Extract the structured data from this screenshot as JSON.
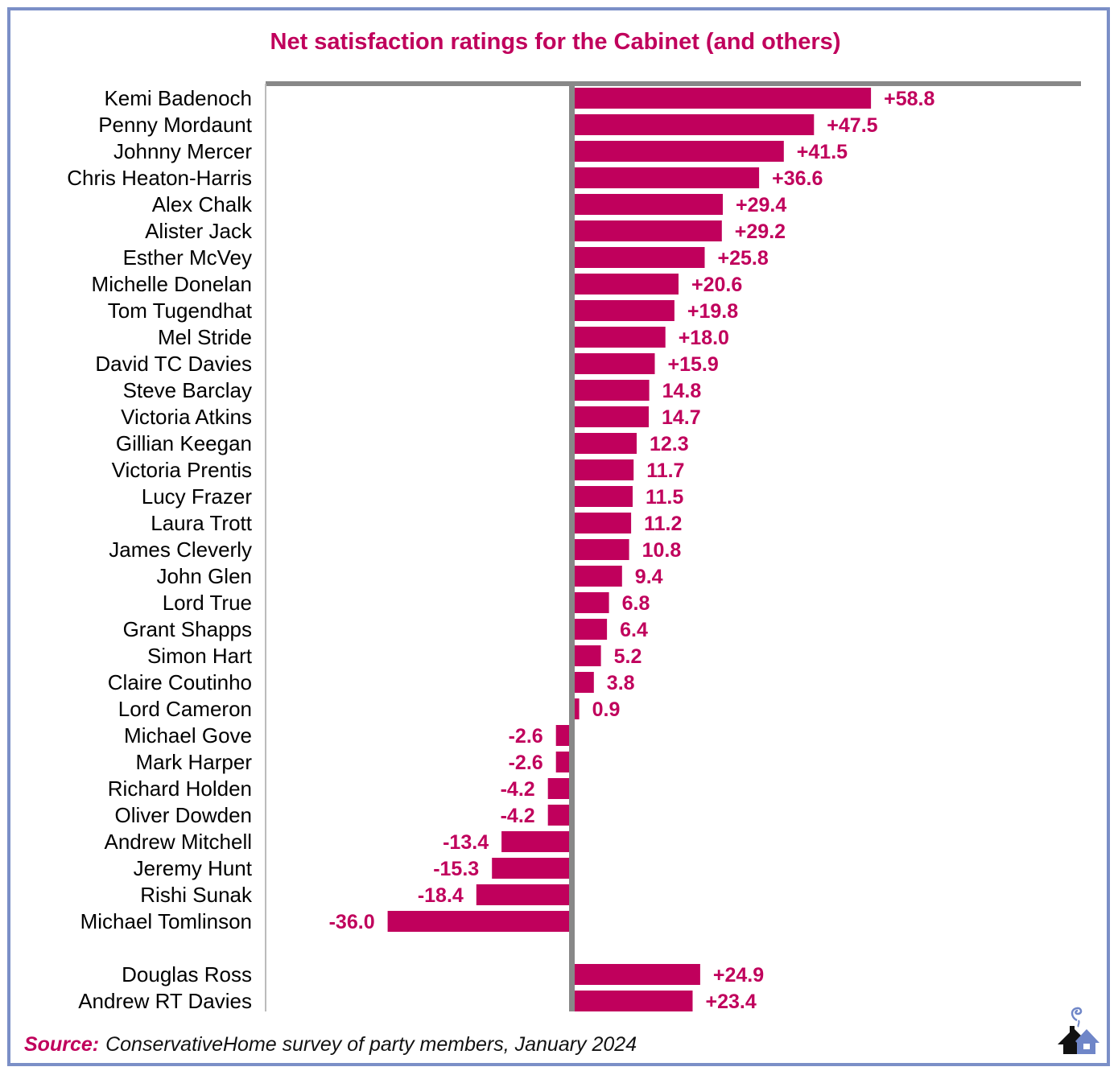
{
  "chart_data": {
    "type": "bar",
    "orientation": "horizontal",
    "title": "Net satisfaction ratings for the Cabinet (and others)",
    "xlabel": "",
    "ylabel": "",
    "xlim": [
      -60,
      100
    ],
    "grid": false,
    "legend": "none",
    "bar_color": "#c0005c",
    "label_color": "#c0005c",
    "axis_color": "#888888",
    "groups": [
      {
        "name": "Cabinet",
        "categories": [
          "Kemi Badenoch",
          "Penny Mordaunt",
          "Johnny Mercer",
          "Chris Heaton-Harris",
          "Alex Chalk",
          "Alister Jack",
          "Esther McVey",
          "Michelle Donelan",
          "Tom Tugendhat",
          "Mel Stride",
          "David TC Davies",
          "Steve Barclay",
          "Victoria Atkins",
          "Gillian Keegan",
          "Victoria Prentis",
          "Lucy Frazer",
          "Laura Trott",
          "James Cleverly",
          "John Glen",
          "Lord True",
          "Grant Shapps",
          "Simon Hart",
          "Claire Coutinho",
          "Lord Cameron",
          "Michael Gove",
          "Mark Harper",
          "Richard Holden",
          "Oliver Dowden",
          "Andrew Mitchell",
          "Jeremy Hunt",
          "Rishi Sunak",
          "Michael Tomlinson"
        ],
        "values": [
          58.8,
          47.5,
          41.5,
          36.6,
          29.4,
          29.2,
          25.8,
          20.6,
          19.8,
          18.0,
          15.9,
          14.8,
          14.7,
          12.3,
          11.7,
          11.5,
          11.2,
          10.8,
          9.4,
          6.8,
          6.4,
          5.2,
          3.8,
          0.9,
          -2.6,
          -2.6,
          -4.2,
          -4.2,
          -13.4,
          -15.3,
          -18.4,
          -36.0
        ],
        "labels": [
          "+58.8",
          "+47.5",
          "+41.5",
          "+36.6",
          "+29.4",
          "+29.2",
          "+25.8",
          "+20.6",
          "+19.8",
          "+18.0",
          "+15.9",
          "14.8",
          "14.7",
          "12.3",
          "11.7",
          "11.5",
          "11.2",
          "10.8",
          "9.4",
          "6.8",
          "6.4",
          "5.2",
          "3.8",
          "0.9",
          "-2.6",
          "-2.6",
          "-4.2",
          "-4.2",
          "-13.4",
          "-15.3",
          "-18.4",
          "-36.0"
        ]
      },
      {
        "name": "Others",
        "categories": [
          "Douglas Ross",
          "Andrew RT Davies"
        ],
        "values": [
          24.9,
          23.4
        ],
        "labels": [
          "+24.9",
          "+23.4"
        ]
      }
    ]
  },
  "footer": {
    "source_prefix": "Source:",
    "source_text": "ConservativeHome survey of party members, January 2024",
    "logo_icon": "conservativehome-house-icon"
  }
}
